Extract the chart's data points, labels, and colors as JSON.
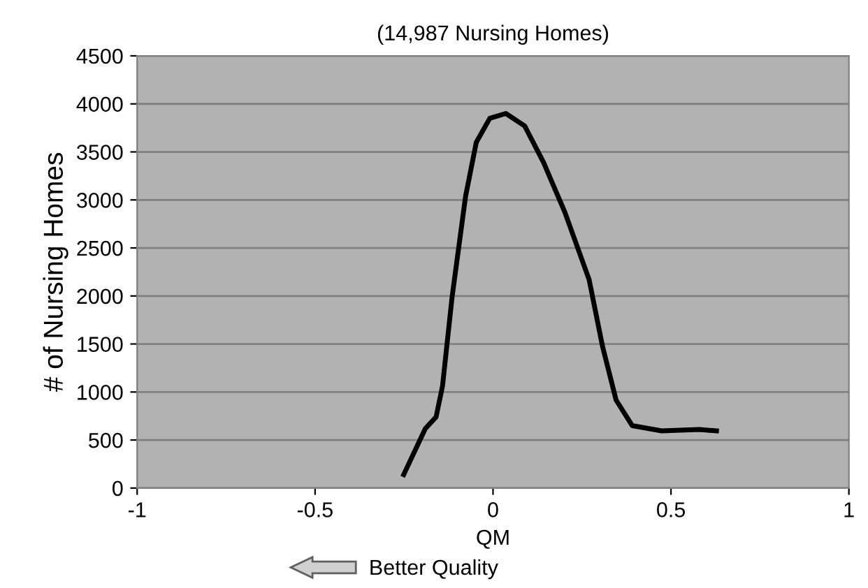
{
  "chart_data": {
    "type": "line",
    "title": "(14,987 Nursing Homes)",
    "xlabel": "QM",
    "ylabel": "# of Nursing Homes",
    "annotations": [
      "Better Quality"
    ],
    "series": [
      {
        "color": "#000000",
        "x": [
          -0.251,
          -0.19,
          -0.16,
          -0.142,
          -0.115,
          -0.077,
          -0.047,
          -0.009,
          0.036,
          0.089,
          0.142,
          0.202,
          0.27,
          0.308,
          0.346,
          0.391,
          0.474,
          0.58,
          0.628
        ],
        "values": [
          140,
          620,
          740,
          1060,
          1990,
          3040,
          3600,
          3850,
          3900,
          3770,
          3390,
          2870,
          2170,
          1470,
          915,
          650,
          595,
          610,
          595
        ]
      }
    ],
    "xlim": [
      -1,
      1
    ],
    "xticks": [
      -1,
      -0.5,
      0,
      0.5,
      1
    ],
    "ylim": [
      0,
      4500
    ],
    "yticks": [
      0,
      500,
      1000,
      1500,
      2000,
      2500,
      3000,
      3500,
      4000,
      4500
    ],
    "grid": "y",
    "marker": "none",
    "line_style": "solid",
    "legend": false
  }
}
